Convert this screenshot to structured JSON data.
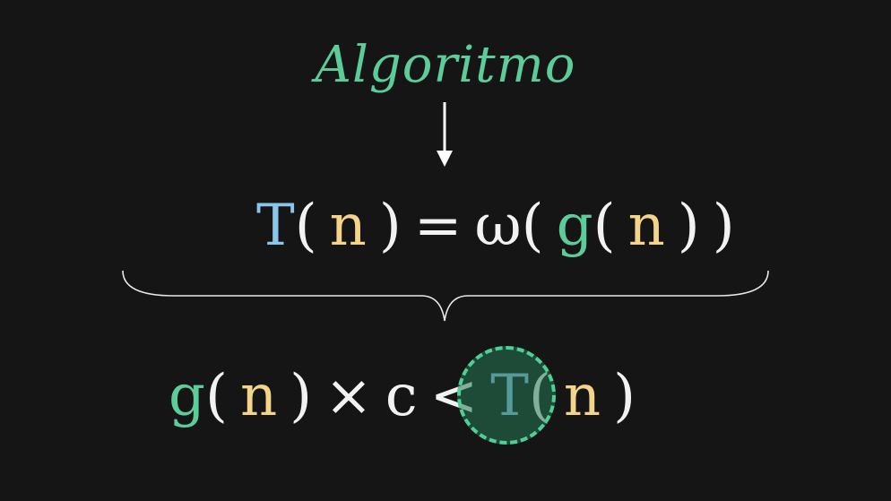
{
  "colors": {
    "background": "#151515",
    "text": "#f2f2f2",
    "T": "#8cc5ea",
    "n": "#f3d488",
    "g": "#5ccc9a",
    "title": "#5ccc9a",
    "highlight_fill": "#267856",
    "highlight_border": "#4fcf98"
  },
  "title": "Algoritmo",
  "arrow_icon": "down-arrow",
  "brace_icon": "curly-brace",
  "formula_top": {
    "T": "T",
    "open1": "(",
    "n1": "n",
    "close1": ")",
    "equals": "=",
    "omega": "ω(",
    "g": "g",
    "open2": "(",
    "n2": "n",
    "close2": ")",
    "close3": ")"
  },
  "formula_bottom": {
    "g": "g",
    "open1": "(",
    "n1": "n",
    "close1": ")",
    "times": "×",
    "c": "c",
    "lt": "<",
    "T": "T",
    "open2": "(",
    "n2": "n",
    "close2": ")"
  }
}
